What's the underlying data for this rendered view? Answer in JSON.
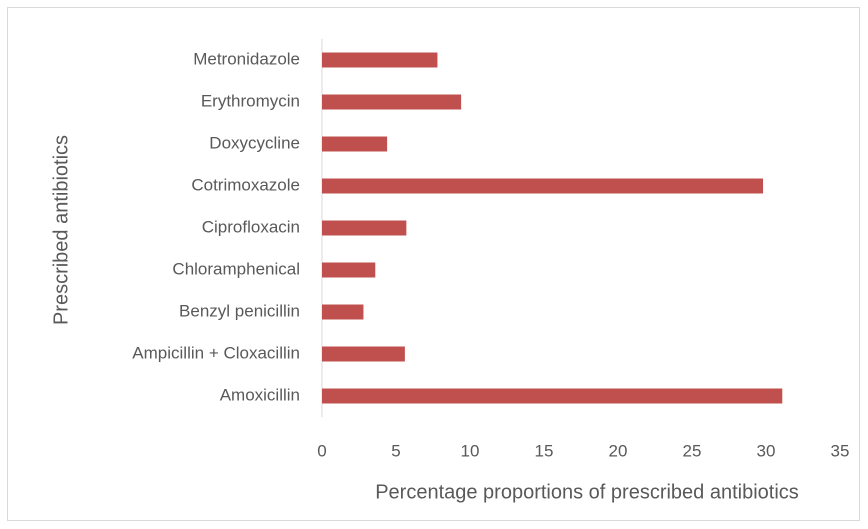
{
  "chart_data": {
    "type": "barh",
    "xlabel": "Percentage proportions of prescribed antibiotics",
    "ylabel": "Prescribed antibiotics",
    "categories": [
      "Amoxicillin",
      "Ampicillin + Cloxacillin",
      "Benzyl penicillin",
      "Chloramphenical",
      "Ciprofloxacin",
      "Cotrimoxazole",
      "Doxycycline",
      "Erythromycin",
      "Metronidazole"
    ],
    "values": [
      31.1,
      5.6,
      2.8,
      3.6,
      5.7,
      29.8,
      4.4,
      9.4,
      7.8
    ],
    "color": "#c0504d",
    "xlim": [
      0,
      35
    ],
    "xticks": [
      0,
      5,
      10,
      15,
      20,
      25,
      30,
      35
    ],
    "grid": false
  }
}
